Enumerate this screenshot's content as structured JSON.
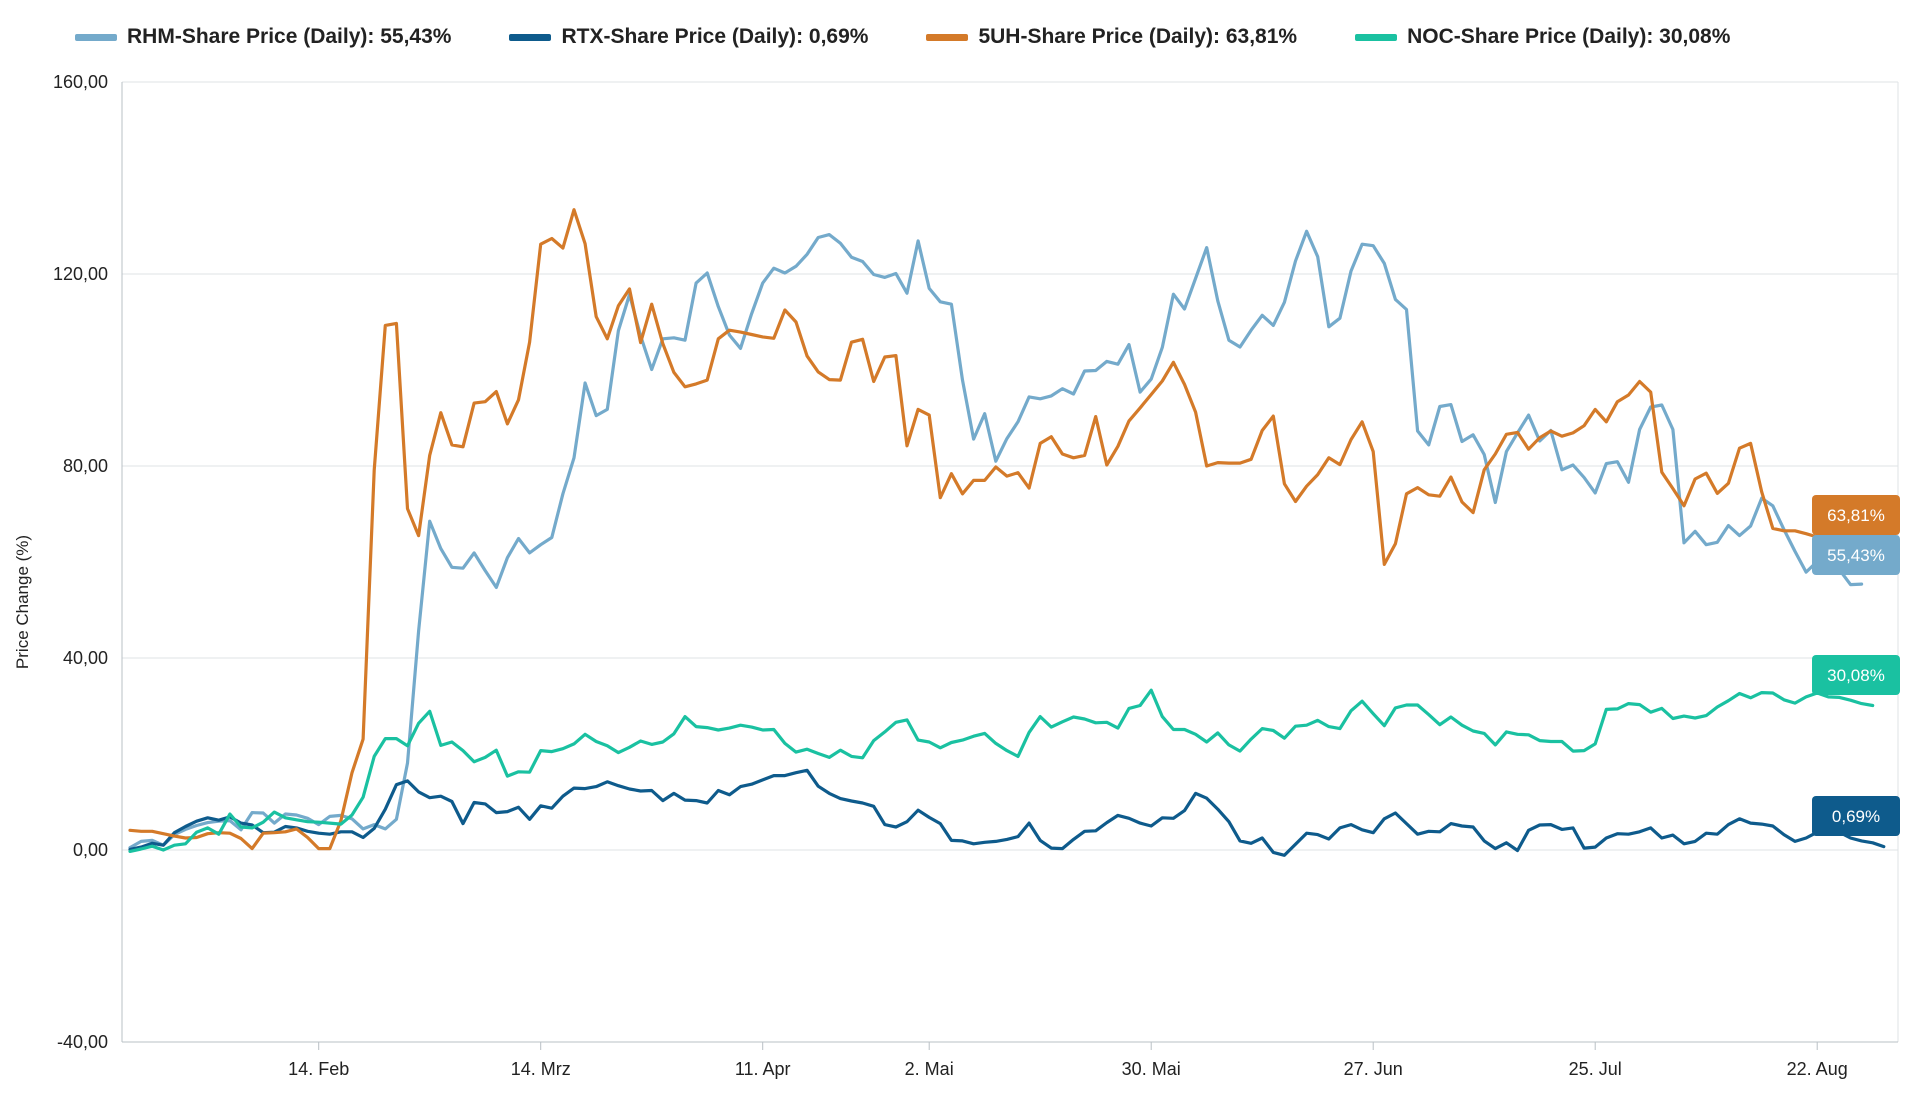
{
  "chart_data": {
    "type": "line",
    "ylabel": "Price Change (%)",
    "xlabel": "",
    "ylim": [
      -40,
      160
    ],
    "y_ticks": [
      -40,
      0,
      40,
      80,
      120,
      160
    ],
    "y_tick_labels": [
      "-40,00",
      "0,00",
      "40,00",
      "80,00",
      "120,00",
      "160,00"
    ],
    "x_ticks": [
      {
        "label": "14. Feb",
        "index": 17
      },
      {
        "label": "14. Mrz",
        "index": 37
      },
      {
        "label": "11. Apr",
        "index": 57
      },
      {
        "label": "2. Mai",
        "index": 72
      },
      {
        "label": "30. Mai",
        "index": 92
      },
      {
        "label": "27. Jun",
        "index": 112
      },
      {
        "label": "25. Jul",
        "index": 132
      },
      {
        "label": "22. Aug",
        "index": 152
      }
    ],
    "x_count": 161,
    "grid": "horizontal",
    "legend_position": "top",
    "series": [
      {
        "name": "RHM-Share Price (Daily)",
        "legend_value": "55,43%",
        "end_label": "55,43%",
        "color": "#74aacb",
        "values": [
          0.5,
          1.8,
          2,
          1,
          3.2,
          4.3,
          5.1,
          5.7,
          6,
          6.1,
          4.2,
          7.8,
          7.7,
          5.6,
          7.5,
          7.3,
          6.6,
          5.3,
          7,
          7.2,
          6.5,
          4.4,
          5.3,
          4.4,
          6.4,
          18.1,
          45.6,
          68.5,
          62.8,
          58.9,
          58.7,
          61.9,
          58.2,
          54.7,
          60.9,
          64.9,
          61.9,
          63.6,
          65.1,
          74.2,
          81.7,
          97.3,
          90.5,
          91.8,
          108.2,
          115.7,
          107.1,
          100.1,
          106.5,
          106.7,
          106.2,
          118.1,
          120.2,
          113.2,
          107.3,
          104.5,
          111.7,
          118.1,
          121.2,
          120.2,
          121.6,
          124.1,
          127.6,
          128.2,
          126.4,
          123.5,
          122.6,
          119.9,
          119.3,
          120.1,
          116,
          126.9,
          117,
          114.2,
          113.7,
          97.9,
          85.6,
          90.9,
          81,
          85.7,
          89.2,
          94.4,
          94,
          94.6,
          96.1,
          95,
          99.8,
          99.9,
          101.8,
          101.2,
          105.3,
          95.4,
          98.1,
          104.7,
          115.8,
          112.7,
          119.1,
          125.5,
          114.4,
          106.2,
          104.8,
          108.3,
          111.4,
          109.3,
          114.1,
          122.7,
          128.9,
          123.6,
          109,
          110.8,
          120.6,
          126.2,
          125.9,
          122.2,
          114.7,
          112.6,
          87.3,
          84.4,
          92.4,
          92.8,
          85.1,
          86.5,
          82.4,
          72.4,
          83,
          86.9,
          90.6,
          85.2,
          87.4,
          79.2,
          80.2,
          77.6,
          74.4,
          80.5,
          80.9,
          76.6,
          87.6,
          92.3,
          92.7,
          87.6,
          64,
          66.4,
          63.6,
          64.1,
          67.6,
          65.5,
          67.5,
          73.3,
          71.7,
          66.8,
          62.2,
          57.9,
          60.1,
          58.9,
          58.4,
          55.3,
          55.4
        ]
      },
      {
        "name": "RTX-Share Price (Daily)",
        "legend_value": "0,69%",
        "end_label": "0,69%",
        "color": "#0e5b8c",
        "values": [
          0.1,
          0.6,
          1.4,
          1,
          3.6,
          4.9,
          6,
          6.7,
          6.2,
          6.9,
          5.6,
          5.2,
          3.6,
          3.7,
          4.9,
          4.6,
          3.9,
          3.5,
          3.3,
          3.8,
          3.8,
          2.6,
          4.5,
          8.5,
          13.6,
          14.4,
          12.1,
          10.9,
          11.2,
          10.1,
          5.5,
          9.9,
          9.6,
          7.8,
          8,
          8.9,
          6.4,
          9.2,
          8.7,
          11.2,
          12.9,
          12.8,
          13.2,
          14.2,
          13.4,
          12.7,
          12.3,
          12.4,
          10.3,
          11.8,
          10.4,
          10.3,
          9.8,
          12.4,
          11.5,
          13.2,
          13.7,
          14.6,
          15.5,
          15.5,
          16.1,
          16.6,
          13.3,
          11.8,
          10.7,
          10.2,
          9.8,
          9.1,
          5.3,
          4.8,
          5.9,
          8.3,
          6.8,
          5.5,
          2,
          1.9,
          1.3,
          1.6,
          1.8,
          2.2,
          2.8,
          5.6,
          2,
          0.4,
          0.3,
          2.2,
          3.9,
          4,
          5.7,
          7.2,
          6.6,
          5.6,
          5,
          6.7,
          6.6,
          8.2,
          11.8,
          10.8,
          8.5,
          5.9,
          1.9,
          1.4,
          2.5,
          -0.5,
          -1.1,
          1.2,
          3.5,
          3.2,
          2.3,
          4.6,
          5.3,
          4.2,
          3.6,
          6.5,
          7.7,
          5.5,
          3.3,
          3.9,
          3.8,
          5.5,
          5,
          4.8,
          1.9,
          0.3,
          1.5,
          -0.1,
          4.1,
          5.2,
          5.3,
          4.3,
          4.6,
          0.4,
          0.6,
          2.5,
          3.4,
          3.3,
          3.8,
          4.6,
          2.5,
          3.1,
          1.3,
          1.8,
          3.5,
          3.3,
          5.3,
          6.5,
          5.6,
          5.4,
          5,
          3.2,
          1.8,
          2.5,
          3.7,
          3.4,
          3.7,
          2.5,
          1.9,
          1.5,
          0.7
        ]
      },
      {
        "name": "5UH-Share Price (Daily)",
        "legend_value": "63,81%",
        "end_label": "63,81%",
        "color": "#d47a29",
        "values": [
          4.1,
          3.9,
          3.9,
          3.4,
          2.9,
          2.5,
          2.6,
          3.4,
          3.6,
          3.5,
          2.4,
          0.3,
          3.5,
          3.6,
          3.8,
          4.4,
          2.6,
          0.3,
          0.3,
          6.1,
          16.1,
          23.1,
          79.1,
          109.3,
          109.7,
          71.1,
          65.5,
          82.2,
          91.1,
          84.4,
          84,
          93.1,
          93.4,
          95.5,
          88.8,
          93.8,
          105.8,
          126.2,
          127.4,
          125.4,
          133.4,
          126.3,
          111.1,
          106.5,
          113.4,
          116.9,
          105.7,
          113.7,
          105.5,
          99.5,
          96.5,
          97.1,
          97.9,
          106.5,
          108.3,
          107.9,
          107.4,
          106.9,
          106.6,
          112.5,
          110,
          102.9,
          99.6,
          98,
          97.9,
          105.8,
          106.4,
          97.6,
          102.7,
          103,
          84.2,
          91.8,
          90.6,
          73.4,
          78.4,
          74.2,
          77,
          77,
          79.8,
          77.9,
          78.6,
          75.4,
          84.7,
          86.1,
          82.5,
          81.7,
          82.2,
          90.3,
          80.2,
          84.1,
          89.4,
          92.1,
          94.9,
          97.7,
          101.6,
          97,
          91.2,
          80,
          80.7,
          80.6,
          80.6,
          81.4,
          87.4,
          90.4,
          76.3,
          72.6,
          75.8,
          78.2,
          81.7,
          80.3,
          85.5,
          89.2,
          83,
          59.5,
          63.8,
          74.2,
          75.5,
          74,
          73.7,
          77.7,
          72.5,
          70.3,
          79.2,
          82.5,
          86.6,
          87,
          83.5,
          85.9,
          87.3,
          86.2,
          86.9,
          88.4,
          91.8,
          89.2,
          93.4,
          94.8,
          97.6,
          95.4,
          78.7,
          75.3,
          71.7,
          77.3,
          78.5,
          74.3,
          76.4,
          83.7,
          84.7,
          74.6,
          67,
          66.5,
          66.5,
          65.9,
          65.2,
          64.1,
          63.8
        ]
      },
      {
        "name": "NOC-Share Price (Daily)",
        "legend_value": "30,08%",
        "end_label": "30,08%",
        "color": "#1ac1a1",
        "values": [
          -0.3,
          0.2,
          0.8,
          0,
          1,
          1.3,
          3.7,
          4.6,
          3.3,
          7.5,
          4.8,
          4.6,
          5.8,
          7.9,
          6.7,
          6.3,
          5.9,
          5.8,
          5.6,
          5.4,
          7.3,
          11,
          19.5,
          23.2,
          23.2,
          21.7,
          26.4,
          28.9,
          21.8,
          22.5,
          20.7,
          18.4,
          19.3,
          20.8,
          15.4,
          16.3,
          16.2,
          20.7,
          20.5,
          21.1,
          22.1,
          24.1,
          22.6,
          21.7,
          20.3,
          21.4,
          22.7,
          22,
          22.5,
          24.2,
          27.8,
          25.7,
          25.5,
          25,
          25.4,
          26,
          25.6,
          25,
          25.1,
          22.2,
          20.4,
          21,
          20.1,
          19.3,
          20.8,
          19.5,
          19.2,
          22.8,
          24.6,
          26.6,
          27.1,
          22.9,
          22.5,
          21.3,
          22.4,
          22.9,
          23.7,
          24.3,
          22.2,
          20.7,
          19.5,
          24.5,
          27.8,
          25.6,
          26.7,
          27.7,
          27.3,
          26.5,
          26.6,
          25.4,
          29.5,
          30.1,
          33.3,
          27.8,
          25.1,
          25.1,
          24.1,
          22.5,
          24.4,
          21.9,
          20.6,
          23.1,
          25.3,
          24.9,
          23.3,
          25.8,
          26,
          27,
          25.7,
          25.3,
          29,
          31,
          28.4,
          25.9,
          29.6,
          30.2,
          30.2,
          28.2,
          26.1,
          27.7,
          26,
          24.8,
          24.3,
          21.9,
          24.6,
          24.1,
          24,
          22.8,
          22.6,
          22.6,
          20.6,
          20.7,
          22.1,
          29.3,
          29.4,
          30.5,
          30.3,
          28.7,
          29.5,
          27.4,
          27.9,
          27.5,
          28,
          29.8,
          31.1,
          32.6,
          31.7,
          32.8,
          32.7,
          31.3,
          30.6,
          31.9,
          32.7,
          31.9,
          31.8,
          31.2,
          30.5,
          30.1
        ]
      }
    ]
  }
}
